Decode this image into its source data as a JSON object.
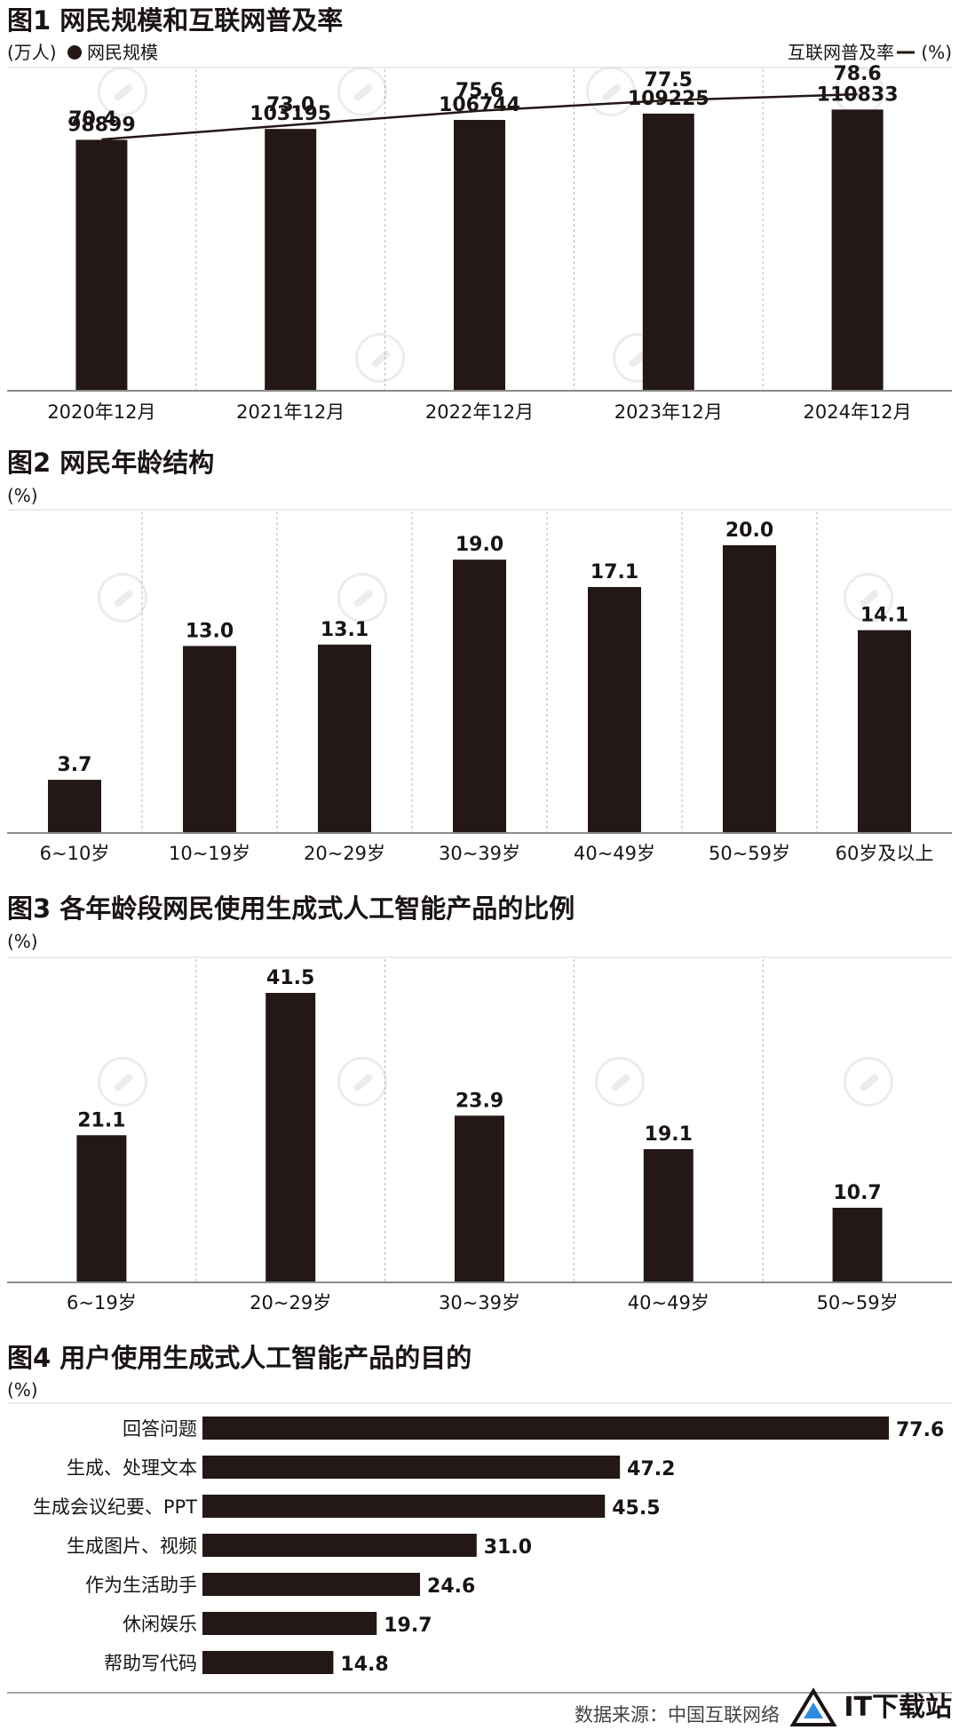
{
  "chart_data": [
    {
      "type": "bar",
      "title": "图1 网民规模和互联网普及率",
      "left_unit": "(万人)",
      "left_legend": "网民规模",
      "right_legend": "互联网普及率",
      "right_unit": "(%)",
      "categories": [
        "2020年12月",
        "2021年12月",
        "2022年12月",
        "2023年12月",
        "2024年12月"
      ],
      "series": [
        {
          "name": "网民规模",
          "type": "bar",
          "values": [
            98899,
            103195,
            106744,
            109225,
            110833
          ]
        },
        {
          "name": "互联网普及率",
          "type": "line",
          "values": [
            70.4,
            73.0,
            75.6,
            77.5,
            78.6
          ]
        }
      ],
      "bar_labels": [
        "98899",
        "103195",
        "106744",
        "109225",
        "110833"
      ],
      "line_labels": [
        "70.4",
        "73.0",
        "75.6",
        "77.5",
        "78.6"
      ]
    },
    {
      "type": "bar",
      "title": "图2 网民年龄结构",
      "unit": "(%)",
      "categories": [
        "6~10岁",
        "10~19岁",
        "20~29岁",
        "30~39岁",
        "40~49岁",
        "50~59岁",
        "60岁及以上"
      ],
      "values": [
        3.7,
        13.0,
        13.1,
        19.0,
        17.1,
        20.0,
        14.1
      ],
      "labels": [
        "3.7",
        "13.0",
        "13.1",
        "19.0",
        "17.1",
        "20.0",
        "14.1"
      ]
    },
    {
      "type": "bar",
      "title": "图3 各年龄段网民使用生成式人工智能产品的比例",
      "unit": "(%)",
      "categories": [
        "6~19岁",
        "20~29岁",
        "30~39岁",
        "40~49岁",
        "50~59岁"
      ],
      "values": [
        21.1,
        41.5,
        23.9,
        19.1,
        10.7
      ],
      "labels": [
        "21.1",
        "41.5",
        "23.9",
        "19.1",
        "10.7"
      ]
    },
    {
      "type": "bar",
      "orientation": "horizontal",
      "title": "图4 用户使用生成式人工智能产品的目的",
      "unit": "(%)",
      "categories": [
        "回答问题",
        "生成、处理文本",
        "生成会议纪要、PPT",
        "生成图片、视频",
        "作为生活助手",
        "休闲娱乐",
        "帮助写代码"
      ],
      "values": [
        77.6,
        47.2,
        45.5,
        31.0,
        24.6,
        19.7,
        14.8
      ],
      "labels": [
        "77.6",
        "47.2",
        "45.5",
        "31.0",
        "24.6",
        "19.7",
        "14.8"
      ]
    }
  ],
  "footer": {
    "source": "数据来源：中国互联网络",
    "logo_text": "IT下载站"
  },
  "colors": {
    "bar": "#231815",
    "text": "#1a1414",
    "axis": "#8a8a8a",
    "grid": "#d8d8d8",
    "divider": "#b5b5b5"
  }
}
